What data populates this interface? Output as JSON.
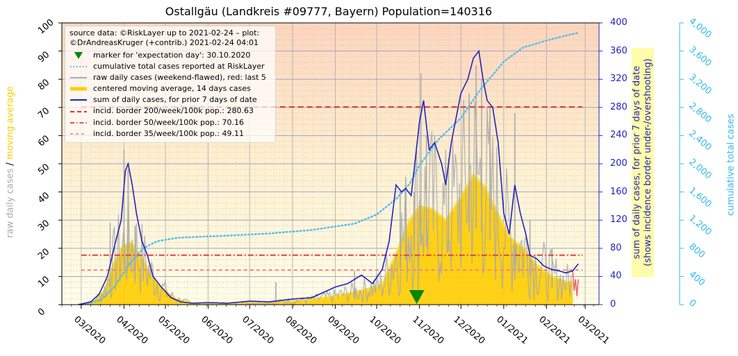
{
  "title": "Ostallgäu (Landkreis #09777, Bayern) Population=140316",
  "legend": {
    "source": "source data: ©RiskLayer up to 2021-02-24 – plot: ©DrAndreasKruger (+contrib.) 2021-02-24 04:01",
    "items": [
      {
        "label": "marker for 'expectation day': 30.10.2020",
        "color": "#008800",
        "style": "triangle"
      },
      {
        "label": "cumulative total cases reported at RiskLayer",
        "color": "#55bbee",
        "style": "dotted"
      },
      {
        "label": "raw daily cases (weekend-flawed), red: last 5",
        "color": "#aaaaaa",
        "style": "line"
      },
      {
        "label": "centered moving average, 14 days cases",
        "color": "#ffcc00",
        "style": "thick"
      },
      {
        "label": "sum of daily cases, for prior 7 days of date",
        "color": "#2222bb",
        "style": "line"
      },
      {
        "label": "incid. border 200/week/100k pop.: 280.63",
        "color": "#dd3333",
        "style": "dashed"
      },
      {
        "label": "incid. border  50/week/100k pop.: 70.16",
        "color": "#dd5555",
        "style": "dashdot"
      },
      {
        "label": "incid. border  35/week/100k pop.: 49.11",
        "color": "#ee9999",
        "style": "dashed"
      }
    ]
  },
  "axes": {
    "left_label_part1": "raw daily cases",
    "left_label_sep": "/",
    "left_label_part2": "moving average",
    "right_label_line1": "sum of daily cases, for prior 7 days of date",
    "right_label_line2": "(shows incidence border under-/overshooting)",
    "total_label": "cumulative total cases",
    "left_ticks": [
      "0",
      "10",
      "20",
      "30",
      "40",
      "50",
      "60",
      "70",
      "80",
      "90",
      "100"
    ],
    "right_ticks": [
      "0",
      "40",
      "80",
      "120",
      "160",
      "200",
      "240",
      "280",
      "320",
      "360",
      "400"
    ],
    "total_ticks": [
      "0",
      "400",
      "800",
      "1,200",
      "1,600",
      "2,000",
      "2,400",
      "2,800",
      "3,200",
      "3,600",
      "4,000"
    ],
    "x_ticks": [
      "03/2020",
      "04/2020",
      "05/2020",
      "06/2020",
      "07/2020",
      "08/2020",
      "09/2020",
      "10/2020",
      "11/2020",
      "12/2020",
      "01/2021",
      "02/2021",
      "03/2021"
    ],
    "colors": {
      "left_raw": "#aaaaaa",
      "left_avg": "#ffcc00",
      "right": "#2222bb",
      "total": "#33bbee"
    }
  },
  "chart_data": {
    "type": "line",
    "x_range": [
      "2020-02-16",
      "2021-03-11"
    ],
    "ylim_left": [
      0,
      100
    ],
    "ylim_right": [
      0,
      400
    ],
    "ylim_total": [
      0,
      4000
    ],
    "grid": true,
    "legend_position": "top-left",
    "expectation_day": "2020-10-30",
    "incidence_borders": [
      {
        "name": "200/week/100k",
        "value": 280.63
      },
      {
        "name": "50/week/100k",
        "value": 70.16
      },
      {
        "name": "35/week/100k",
        "value": 49.11
      }
    ],
    "series": [
      {
        "name": "sum of daily cases, for prior 7 days of date",
        "axis": "right",
        "points": [
          [
            "2020-02-28",
            0
          ],
          [
            "2020-03-08",
            4
          ],
          [
            "2020-03-14",
            15
          ],
          [
            "2020-03-20",
            40
          ],
          [
            "2020-03-26",
            90
          ],
          [
            "2020-03-30",
            120
          ],
          [
            "2020-04-02",
            190
          ],
          [
            "2020-04-04",
            200
          ],
          [
            "2020-04-07",
            170
          ],
          [
            "2020-04-10",
            130
          ],
          [
            "2020-04-14",
            90
          ],
          [
            "2020-04-18",
            70
          ],
          [
            "2020-04-22",
            40
          ],
          [
            "2020-04-28",
            25
          ],
          [
            "2020-05-05",
            10
          ],
          [
            "2020-05-12",
            4
          ],
          [
            "2020-05-20",
            2
          ],
          [
            "2020-06-01",
            3
          ],
          [
            "2020-06-15",
            2
          ],
          [
            "2020-07-01",
            5
          ],
          [
            "2020-07-15",
            4
          ],
          [
            "2020-08-01",
            8
          ],
          [
            "2020-08-15",
            10
          ],
          [
            "2020-09-01",
            25
          ],
          [
            "2020-09-10",
            30
          ],
          [
            "2020-09-20",
            42
          ],
          [
            "2020-09-28",
            30
          ],
          [
            "2020-10-05",
            50
          ],
          [
            "2020-10-10",
            90
          ],
          [
            "2020-10-15",
            170
          ],
          [
            "2020-10-19",
            160
          ],
          [
            "2020-10-22",
            165
          ],
          [
            "2020-10-26",
            155
          ],
          [
            "2020-10-28",
            190
          ],
          [
            "2020-11-01",
            260
          ],
          [
            "2020-11-04",
            290
          ],
          [
            "2020-11-08",
            220
          ],
          [
            "2020-11-12",
            230
          ],
          [
            "2020-11-17",
            200
          ],
          [
            "2020-11-20",
            170
          ],
          [
            "2020-11-24",
            230
          ],
          [
            "2020-11-28",
            270
          ],
          [
            "2020-12-01",
            300
          ],
          [
            "2020-12-06",
            320
          ],
          [
            "2020-12-10",
            350
          ],
          [
            "2020-12-14",
            360
          ],
          [
            "2020-12-17",
            320
          ],
          [
            "2020-12-20",
            290
          ],
          [
            "2020-12-24",
            280
          ],
          [
            "2020-12-28",
            230
          ],
          [
            "2021-01-01",
            130
          ],
          [
            "2021-01-05",
            100
          ],
          [
            "2021-01-09",
            170
          ],
          [
            "2021-01-13",
            130
          ],
          [
            "2021-01-17",
            100
          ],
          [
            "2021-01-20",
            70
          ],
          [
            "2021-01-25",
            65
          ],
          [
            "2021-01-30",
            55
          ],
          [
            "2021-02-05",
            50
          ],
          [
            "2021-02-10",
            48
          ],
          [
            "2021-02-15",
            45
          ],
          [
            "2021-02-20",
            48
          ],
          [
            "2021-02-24",
            58
          ]
        ]
      },
      {
        "name": "centered moving average, 14 days cases",
        "axis": "left",
        "points": [
          [
            "2020-02-28",
            0
          ],
          [
            "2020-03-10",
            1
          ],
          [
            "2020-03-18",
            5
          ],
          [
            "2020-03-25",
            15
          ],
          [
            "2020-04-01",
            21
          ],
          [
            "2020-04-06",
            22
          ],
          [
            "2020-04-12",
            18
          ],
          [
            "2020-04-20",
            11
          ],
          [
            "2020-04-28",
            6
          ],
          [
            "2020-05-08",
            2
          ],
          [
            "2020-05-20",
            0.5
          ],
          [
            "2020-06-15",
            0.5
          ],
          [
            "2020-07-15",
            0.8
          ],
          [
            "2020-08-10",
            1.5
          ],
          [
            "2020-09-01",
            3
          ],
          [
            "2020-09-20",
            5
          ],
          [
            "2020-10-05",
            7
          ],
          [
            "2020-10-15",
            18
          ],
          [
            "2020-10-25",
            30
          ],
          [
            "2020-11-01",
            35
          ],
          [
            "2020-11-10",
            34
          ],
          [
            "2020-11-20",
            30
          ],
          [
            "2020-12-01",
            38
          ],
          [
            "2020-12-10",
            46
          ],
          [
            "2020-12-18",
            42
          ],
          [
            "2020-12-28",
            32
          ],
          [
            "2021-01-05",
            24
          ],
          [
            "2021-01-15",
            20
          ],
          [
            "2021-01-25",
            14
          ],
          [
            "2021-02-05",
            10
          ],
          [
            "2021-02-15",
            8
          ],
          [
            "2021-02-20",
            8
          ]
        ]
      },
      {
        "name": "cumulative total cases reported at RiskLayer",
        "axis": "total",
        "points": [
          [
            "2020-03-01",
            0
          ],
          [
            "2020-03-15",
            60
          ],
          [
            "2020-03-25",
            250
          ],
          [
            "2020-04-05",
            580
          ],
          [
            "2020-04-15",
            800
          ],
          [
            "2020-04-25",
            900
          ],
          [
            "2020-05-10",
            950
          ],
          [
            "2020-06-15",
            980
          ],
          [
            "2020-07-15",
            1010
          ],
          [
            "2020-08-15",
            1060
          ],
          [
            "2020-09-15",
            1150
          ],
          [
            "2020-10-01",
            1280
          ],
          [
            "2020-10-15",
            1500
          ],
          [
            "2020-10-25",
            1720
          ],
          [
            "2020-11-01",
            1980
          ],
          [
            "2020-11-15",
            2350
          ],
          [
            "2020-12-01",
            2650
          ],
          [
            "2020-12-15",
            3050
          ],
          [
            "2021-01-01",
            3450
          ],
          [
            "2021-01-15",
            3650
          ],
          [
            "2021-02-01",
            3750
          ],
          [
            "2021-02-15",
            3820
          ],
          [
            "2021-02-24",
            3860
          ]
        ]
      }
    ],
    "raw_daily_peaks": [
      [
        "2020-03-22",
        29
      ],
      [
        "2020-04-01",
        55
      ],
      [
        "2020-04-04",
        48
      ],
      [
        "2020-04-09",
        28
      ],
      [
        "2020-05-02",
        5
      ],
      [
        "2020-07-20",
        8
      ],
      [
        "2020-09-15",
        12
      ],
      [
        "2020-10-18",
        40
      ],
      [
        "2020-10-22",
        45
      ],
      [
        "2020-10-28",
        40
      ],
      [
        "2020-11-02",
        82
      ],
      [
        "2020-11-06",
        60
      ],
      [
        "2020-11-22",
        52
      ],
      [
        "2020-12-07",
        75
      ],
      [
        "2020-12-12",
        85
      ],
      [
        "2020-12-16",
        80
      ],
      [
        "2020-12-22",
        70
      ],
      [
        "2021-01-09",
        68
      ],
      [
        "2021-01-20",
        30
      ],
      [
        "2021-02-05",
        20
      ]
    ],
    "raw_last5_red": [
      [
        "2021-02-20",
        12
      ],
      [
        "2021-02-21",
        5
      ],
      [
        "2021-02-22",
        9
      ],
      [
        "2021-02-23",
        3
      ],
      [
        "2021-02-24",
        9
      ]
    ]
  }
}
